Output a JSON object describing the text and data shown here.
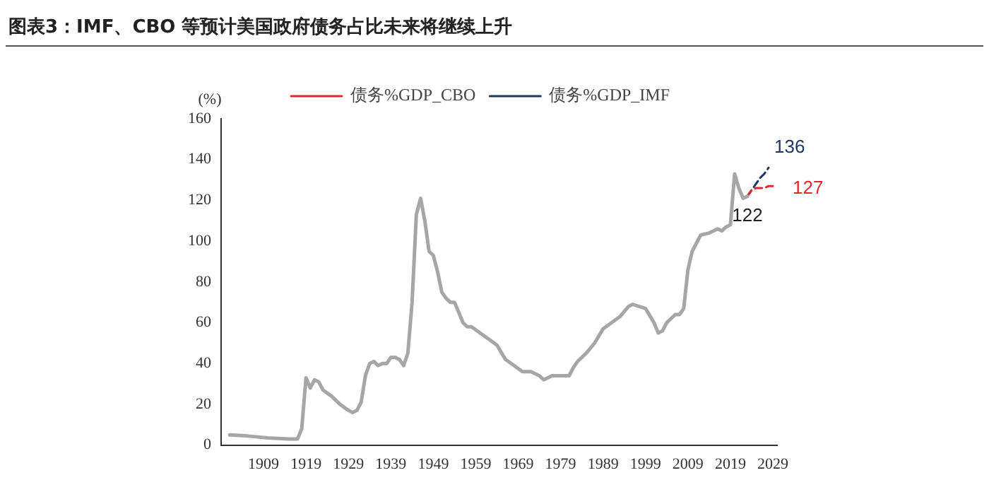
{
  "chart_data": {
    "type": "line",
    "title": "图表3：IMF、CBO 等预计美国政府债务占比未来将继续上升",
    "ylabel": "(%)",
    "xlim": [
      1899,
      2030
    ],
    "xticks": [
      1909,
      1919,
      1929,
      1939,
      1949,
      1959,
      1969,
      1979,
      1989,
      1999,
      2009,
      2019,
      2029
    ],
    "ylim": [
      0,
      160
    ],
    "yticks": [
      0,
      20,
      40,
      60,
      80,
      100,
      120,
      140,
      160
    ],
    "grid": false,
    "legend": "top",
    "marker": "none",
    "series": [
      {
        "color": "#a6a6a6",
        "line_style": "solid",
        "x": [
          1901,
          1905,
          1910,
          1915,
          1917,
          1918,
          1919,
          1920,
          1921,
          1922,
          1923,
          1925,
          1927,
          1929,
          1930,
          1931,
          1932,
          1933,
          1934,
          1935,
          1936,
          1937,
          1938,
          1939,
          1940,
          1941,
          1942,
          1943,
          1944,
          1945,
          1946,
          1947,
          1948,
          1949,
          1950,
          1951,
          1952,
          1953,
          1954,
          1955,
          1956,
          1957,
          1958,
          1960,
          1962,
          1964,
          1966,
          1968,
          1970,
          1972,
          1974,
          1975,
          1977,
          1979,
          1981,
          1982,
          1983,
          1985,
          1987,
          1989,
          1991,
          1993,
          1995,
          1996,
          1999,
          2001,
          2002,
          2003,
          2004,
          2006,
          2007,
          2008,
          2009,
          2010,
          2011,
          2012,
          2014,
          2015,
          2016,
          2017,
          2018,
          2019,
          2020,
          2021,
          2022,
          2023
        ],
        "values": [
          5,
          4.5,
          3.5,
          3,
          3,
          8,
          33,
          28,
          32,
          31,
          27,
          24,
          20,
          17,
          16,
          17,
          21,
          34,
          40,
          41,
          39,
          40,
          40,
          43,
          43,
          42,
          39,
          45,
          70,
          113,
          121,
          110,
          95,
          93,
          85,
          75,
          72,
          70,
          70,
          65,
          60,
          58,
          58,
          55,
          52,
          49,
          42,
          39,
          36,
          36,
          34,
          32,
          34,
          34,
          34,
          38,
          41,
          45,
          50,
          57,
          60,
          63,
          68,
          69,
          67,
          60,
          55,
          56,
          60,
          64,
          64,
          67,
          86,
          95,
          99,
          103,
          104,
          105,
          106,
          105,
          107,
          108,
          133,
          126,
          121,
          122
        ]
      },
      {
        "name": "债务%GDP_CBO",
        "color": "#e0282e",
        "line_style": "dashed",
        "x": [
          2023,
          2024,
          2025,
          2026,
          2027,
          2028,
          2029
        ],
        "values": [
          122,
          125,
          126,
          126,
          126,
          127,
          127
        ]
      },
      {
        "name": "债务%GDP_IMF",
        "color": "#1f3864",
        "line_style": "dashed",
        "x": [
          2023,
          2024,
          2025,
          2026,
          2027,
          2028
        ],
        "values": [
          122,
          125,
          128,
          131,
          133,
          136
        ]
      }
    ],
    "annotations": [
      {
        "text": "136",
        "x": 2028,
        "y": 136
      },
      {
        "text": "127",
        "x": 2029,
        "y": 127
      },
      {
        "text": "122",
        "x": 2023,
        "y": 122
      }
    ]
  }
}
